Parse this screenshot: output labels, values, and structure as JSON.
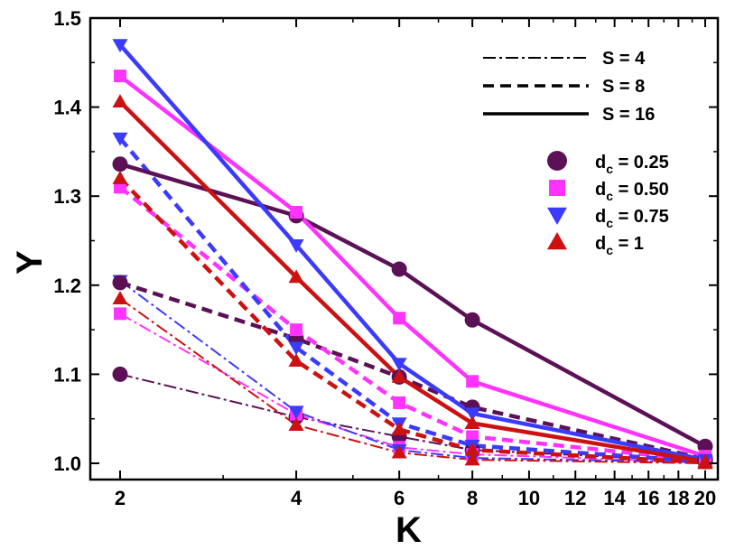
{
  "chart_data": {
    "type": "line",
    "xlabel": "K",
    "ylabel": "Y",
    "xscale": "log",
    "xlim": [
      2,
      20
    ],
    "ylim": [
      1.0,
      1.5
    ],
    "xticks": [
      2,
      4,
      6,
      8,
      10,
      12,
      14,
      16,
      18,
      20
    ],
    "xtick_labels": [
      "2",
      "4",
      "6",
      "8",
      "10",
      "12",
      "14",
      "16",
      "18",
      "20"
    ],
    "yticks": [
      1.0,
      1.1,
      1.2,
      1.3,
      1.4,
      1.5
    ],
    "ytick_labels": [
      "1.0",
      "1.1",
      "1.2",
      "1.3",
      "1.4",
      "1.5"
    ],
    "x": [
      2,
      4,
      6,
      8,
      20
    ],
    "legend_styles": [
      {
        "label": "S = 4",
        "style": "dashdot"
      },
      {
        "label": "S = 8",
        "style": "dashed"
      },
      {
        "label": "S = 16",
        "style": "solid"
      }
    ],
    "legend_markers": [
      {
        "label_main": "d",
        "label_sub": "c",
        "label_rest": " = 0.25",
        "marker": "circle",
        "color": "#5c1157"
      },
      {
        "label_main": "d",
        "label_sub": "c",
        "label_rest": " = 0.50",
        "marker": "square",
        "color": "#ff33ff"
      },
      {
        "label_main": "d",
        "label_sub": "c",
        "label_rest": " = 0.75",
        "marker": "triangle-down",
        "color": "#3b3bff"
      },
      {
        "label_main": "d",
        "label_sub": "c",
        "label_rest": " = 1",
        "marker": "triangle-up",
        "color": "#cc1111"
      }
    ],
    "series": [
      {
        "name": "S=4, dc=0.25",
        "S": 4,
        "dc": "0.25",
        "style": "dashdot",
        "marker": "circle",
        "color": "#5c1157",
        "values": [
          1.1,
          1.052,
          1.03,
          1.015,
          1.002
        ]
      },
      {
        "name": "S=4, dc=0.50",
        "S": 4,
        "dc": "0.50",
        "style": "dashdot",
        "marker": "square",
        "color": "#ff33ff",
        "values": [
          1.168,
          1.055,
          1.018,
          1.01,
          1.001
        ]
      },
      {
        "name": "S=4, dc=0.75",
        "S": 4,
        "dc": "0.75",
        "style": "dashdot",
        "marker": "triangle-down",
        "color": "#3b3bff",
        "values": [
          1.205,
          1.058,
          1.015,
          1.006,
          1.001
        ]
      },
      {
        "name": "S=4, dc=1",
        "S": 4,
        "dc": "1",
        "style": "dashdot",
        "marker": "triangle-up",
        "color": "#cc1111",
        "values": [
          1.185,
          1.043,
          1.012,
          1.004,
          1.0
        ]
      },
      {
        "name": "S=8, dc=0.25",
        "S": 8,
        "dc": "0.25",
        "style": "dashed",
        "marker": "circle",
        "color": "#5c1157",
        "values": [
          1.203,
          1.14,
          1.097,
          1.063,
          1.005
        ]
      },
      {
        "name": "S=8, dc=0.50",
        "S": 8,
        "dc": "0.50",
        "style": "dashed",
        "marker": "square",
        "color": "#ff33ff",
        "values": [
          1.31,
          1.15,
          1.068,
          1.03,
          1.003
        ]
      },
      {
        "name": "S=8, dc=0.75",
        "S": 8,
        "dc": "0.75",
        "style": "dashed",
        "marker": "triangle-down",
        "color": "#3b3bff",
        "values": [
          1.365,
          1.13,
          1.045,
          1.02,
          1.002
        ]
      },
      {
        "name": "S=8, dc=1",
        "S": 8,
        "dc": "1",
        "style": "dashed",
        "marker": "triangle-up",
        "color": "#cc1111",
        "values": [
          1.32,
          1.115,
          1.038,
          1.015,
          1.001
        ]
      },
      {
        "name": "S=16, dc=0.25",
        "S": 16,
        "dc": "0.25",
        "style": "solid",
        "marker": "circle",
        "color": "#5c1157",
        "values": [
          1.336,
          1.278,
          1.218,
          1.161,
          1.019
        ]
      },
      {
        "name": "S=16, dc=0.50",
        "S": 16,
        "dc": "0.50",
        "style": "solid",
        "marker": "square",
        "color": "#ff33ff",
        "values": [
          1.435,
          1.282,
          1.163,
          1.092,
          1.008
        ]
      },
      {
        "name": "S=16, dc=0.75",
        "S": 16,
        "dc": "0.75",
        "style": "solid",
        "marker": "triangle-down",
        "color": "#3b3bff",
        "values": [
          1.47,
          1.245,
          1.112,
          1.056,
          1.004
        ]
      },
      {
        "name": "S=16, dc=1",
        "S": 16,
        "dc": "1",
        "style": "solid",
        "marker": "triangle-up",
        "color": "#cc1111",
        "values": [
          1.406,
          1.209,
          1.097,
          1.045,
          1.002
        ]
      }
    ]
  }
}
